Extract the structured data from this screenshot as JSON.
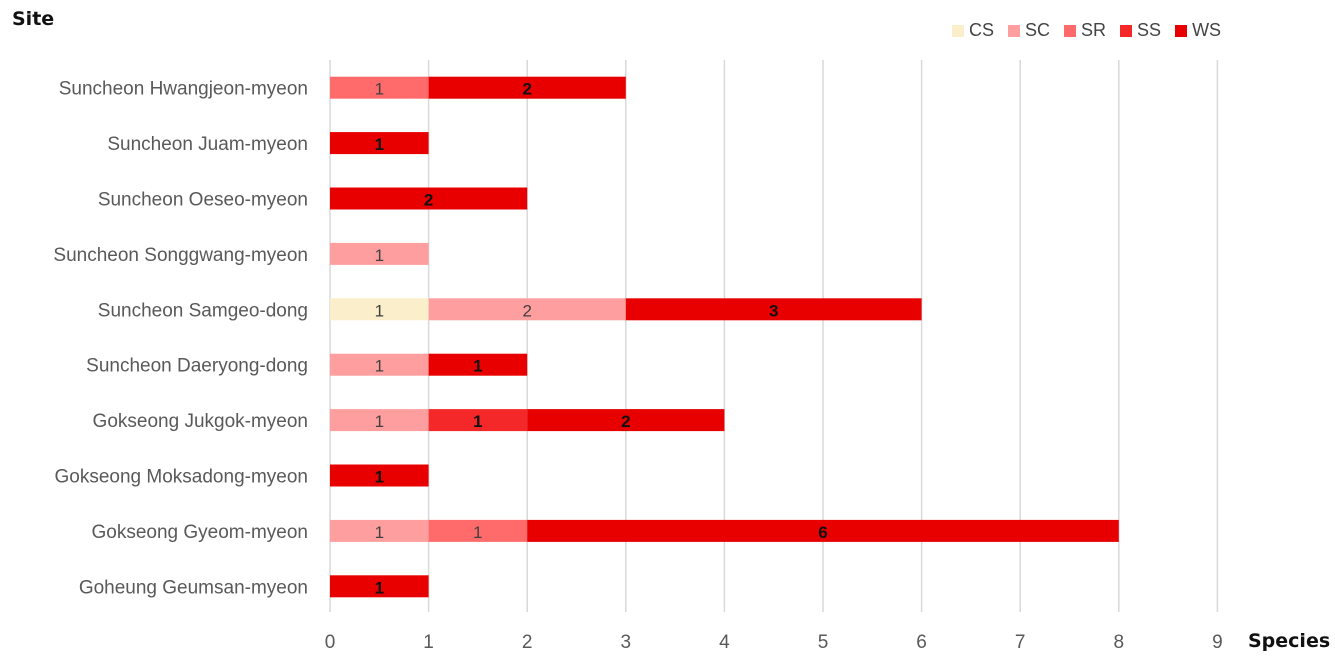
{
  "chart_data": {
    "type": "bar",
    "orientation": "horizontal",
    "stacked": true,
    "xlabel": "Species",
    "ylabel": "Site",
    "xlim": [
      0,
      9
    ],
    "xticks": [
      "0",
      "1",
      "2",
      "3",
      "4",
      "5",
      "6",
      "7",
      "8",
      "9"
    ],
    "grid": "vertical",
    "legend_position": "top-right",
    "categories": [
      "Suncheon Hwangjeon-myeon",
      "Suncheon Juam-myeon",
      "Suncheon Oeseo-myeon",
      "Suncheon Songgwang-myeon",
      "Suncheon Samgeo-dong",
      "Suncheon Daeryong-dong",
      "Gokseong Jukgok-myeon",
      "Gokseong Moksadong-myeon",
      "Gokseong Gyeom-myeon",
      "Goheung Geumsan-myeon"
    ],
    "series": [
      {
        "name": "CS",
        "color": "#FBEFCB",
        "values": [
          0,
          0,
          0,
          0,
          1,
          0,
          0,
          0,
          0,
          0
        ]
      },
      {
        "name": "SC",
        "color": "#FF9E9E",
        "values": [
          0,
          0,
          0,
          1,
          2,
          1,
          1,
          0,
          1,
          0
        ]
      },
      {
        "name": "SR",
        "color": "#FF6B6B",
        "values": [
          1,
          0,
          0,
          0,
          0,
          0,
          0,
          0,
          1,
          0
        ]
      },
      {
        "name": "SS",
        "color": "#F42828",
        "values": [
          0,
          0,
          0,
          0,
          0,
          0,
          1,
          0,
          0,
          0
        ]
      },
      {
        "name": "WS",
        "color": "#E80000",
        "values": [
          2,
          1,
          2,
          0,
          3,
          1,
          2,
          1,
          6,
          1
        ]
      }
    ]
  }
}
